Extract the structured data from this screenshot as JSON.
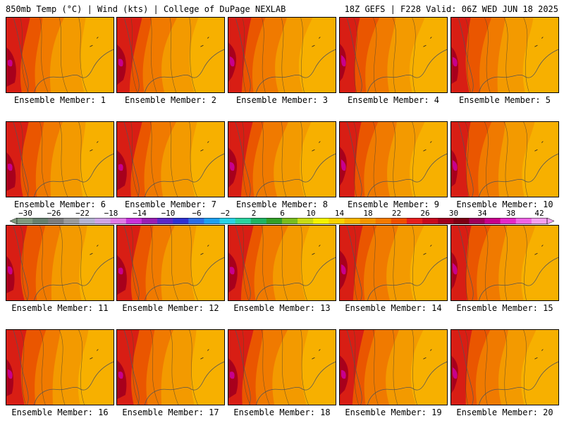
{
  "header": {
    "left": "850mb Temp (°C) | Wind (kts) | College of DuPage NEXLAB",
    "right": "18Z GEFS | F228 Valid: 06Z WED JUN 18 2025"
  },
  "panels": [
    {
      "label": "Ensemble Member: 1"
    },
    {
      "label": "Ensemble Member: 2"
    },
    {
      "label": "Ensemble Member: 3"
    },
    {
      "label": "Ensemble Member: 4"
    },
    {
      "label": "Ensemble Member: 5"
    },
    {
      "label": "Ensemble Member: 6"
    },
    {
      "label": "Ensemble Member: 7"
    },
    {
      "label": "Ensemble Member: 8"
    },
    {
      "label": "Ensemble Member: 9"
    },
    {
      "label": "Ensemble Member: 10"
    },
    {
      "label": "Ensemble Member: 11"
    },
    {
      "label": "Ensemble Member: 12"
    },
    {
      "label": "Ensemble Member: 13"
    },
    {
      "label": "Ensemble Member: 14"
    },
    {
      "label": "Ensemble Member: 15"
    },
    {
      "label": "Ensemble Member: 16"
    },
    {
      "label": "Ensemble Member: 17"
    },
    {
      "label": "Ensemble Member: 18"
    },
    {
      "label": "Ensemble Member: 19"
    },
    {
      "label": "Ensemble Member: 20"
    }
  ],
  "colorbar": {
    "tick_labels": [
      "−30",
      "−26",
      "−22",
      "−18",
      "−14",
      "−10",
      "−6",
      "−2",
      "2",
      "6",
      "10",
      "14",
      "18",
      "22",
      "26",
      "30",
      "34",
      "38",
      "42"
    ],
    "colors": [
      "#7f9a7f",
      "#66806e",
      "#7d7d7d",
      "#9b9b9b",
      "#b4b4d2",
      "#cfa6e6",
      "#e07ae6",
      "#c832dc",
      "#9a1eb4",
      "#5a28c8",
      "#2e32d2",
      "#2c6ee6",
      "#1ea0f0",
      "#28d2e6",
      "#2ad2a0",
      "#1eb464",
      "#32a028",
      "#78be1e",
      "#c8dc14",
      "#f5f500",
      "#fad200",
      "#fab400",
      "#f59600",
      "#f57a00",
      "#f05000",
      "#e61e1e",
      "#c80a1e",
      "#a0001e",
      "#7d0014",
      "#a0005a",
      "#c8008c",
      "#e628c8",
      "#f064e6",
      "#f5a0f0"
    ]
  }
}
